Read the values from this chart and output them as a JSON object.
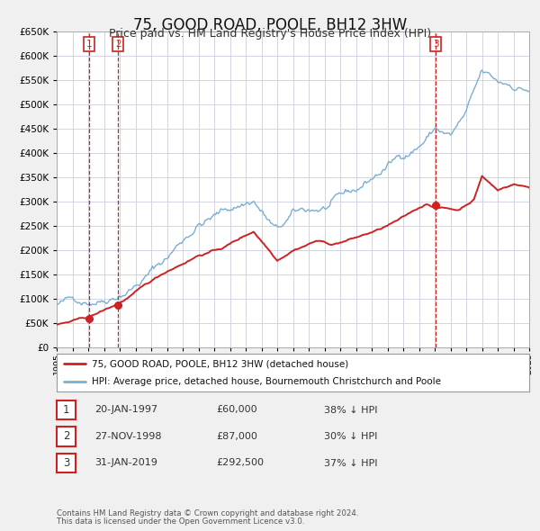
{
  "title": "75, GOOD ROAD, POOLE, BH12 3HW",
  "subtitle": "Price paid vs. HM Land Registry's House Price Index (HPI)",
  "title_fontsize": 12,
  "subtitle_fontsize": 9,
  "bg_color": "#f0f0f0",
  "plot_bg_color": "#ffffff",
  "grid_color": "#ccccdd",
  "hpi_color": "#7aafd4",
  "price_color": "#cc2222",
  "marker_color": "#cc2222",
  "xmin": 1995,
  "xmax": 2025,
  "ymin": 0,
  "ymax": 650000,
  "transactions": [
    {
      "date_num": 1997.05,
      "price": 60000,
      "label": "1"
    },
    {
      "date_num": 1998.9,
      "price": 87000,
      "label": "2"
    },
    {
      "date_num": 2019.08,
      "price": 292500,
      "label": "3"
    }
  ],
  "vline_dates": [
    1997.05,
    1998.9,
    2019.08
  ],
  "vline_labels": [
    "1",
    "2",
    "3"
  ],
  "table_rows": [
    {
      "num": "1",
      "date": "20-JAN-1997",
      "price": "£60,000",
      "pct": "38% ↓ HPI"
    },
    {
      "num": "2",
      "date": "27-NOV-1998",
      "price": "£87,000",
      "pct": "30% ↓ HPI"
    },
    {
      "num": "3",
      "date": "31-JAN-2019",
      "price": "£292,500",
      "pct": "37% ↓ HPI"
    }
  ],
  "legend_property_label": "75, GOOD ROAD, POOLE, BH12 3HW (detached house)",
  "legend_hpi_label": "HPI: Average price, detached house, Bournemouth Christchurch and Poole",
  "footer1": "Contains HM Land Registry data © Crown copyright and database right 2024.",
  "footer2": "This data is licensed under the Open Government Licence v3.0.",
  "hpi_anchors_x": [
    1995.0,
    1997.0,
    1998.0,
    2000.0,
    2002.0,
    2004.0,
    2007.5,
    2009.0,
    2010.0,
    2012.0,
    2014.0,
    2016.0,
    2018.0,
    2019.08,
    2020.0,
    2021.0,
    2022.0,
    2023.0,
    2024.0,
    2025.0
  ],
  "hpi_anchors_y": [
    88000,
    100000,
    112000,
    155000,
    210000,
    285000,
    335000,
    268000,
    295000,
    305000,
    325000,
    375000,
    425000,
    462000,
    445000,
    485000,
    558000,
    532000,
    530000,
    525000
  ],
  "price_anchors_x": [
    1995.0,
    1997.05,
    1998.9,
    2000.0,
    2002.0,
    2004.0,
    2005.5,
    2007.5,
    2009.0,
    2010.0,
    2011.5,
    2012.5,
    2014.0,
    2015.5,
    2017.0,
    2018.5,
    2019.08,
    2020.5,
    2021.5,
    2022.0,
    2023.0,
    2024.0,
    2025.0
  ],
  "price_anchors_y": [
    47000,
    60000,
    87000,
    110000,
    152000,
    188000,
    203000,
    238000,
    182000,
    205000,
    226000,
    218000,
    232000,
    248000,
    270000,
    298000,
    292500,
    286000,
    310000,
    358000,
    328000,
    342000,
    335000
  ]
}
